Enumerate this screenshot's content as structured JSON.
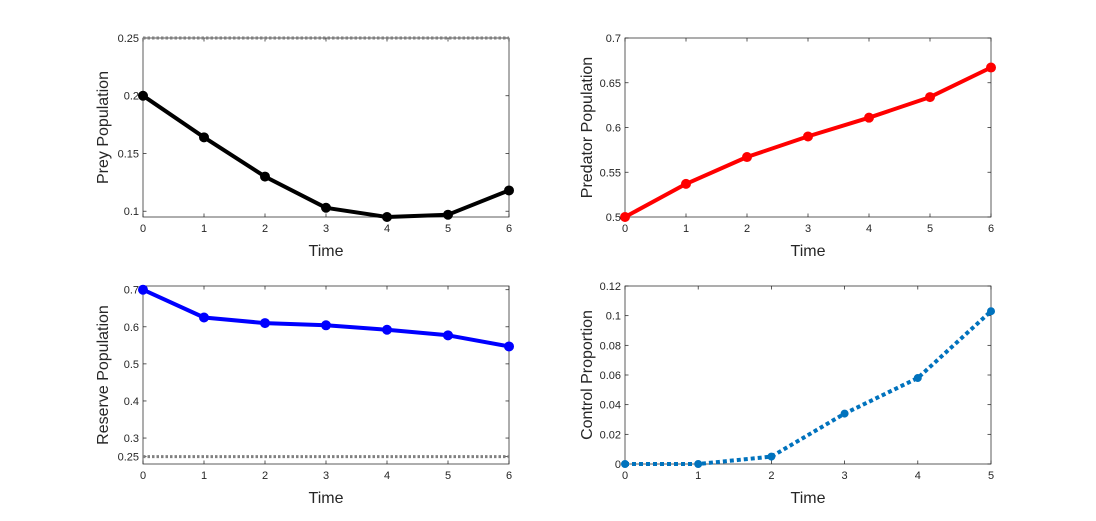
{
  "chart_data": [
    {
      "type": "line",
      "panel": "top-left",
      "xlabel": "Time",
      "ylabel": "Prey Population",
      "x": [
        0,
        1,
        2,
        3,
        4,
        5,
        6
      ],
      "xlim": [
        0,
        6
      ],
      "ylim": [
        0.095,
        0.25
      ],
      "xticks": [
        0,
        1,
        2,
        3,
        4,
        5,
        6
      ],
      "yticks": [
        0.1,
        0.15,
        0.2,
        0.25
      ],
      "ytick_labels": [
        "0.1",
        "0.15",
        "0.2",
        "0.25"
      ],
      "series": [
        {
          "name": "prey",
          "values": [
            0.2,
            0.164,
            0.13,
            0.103,
            0.095,
            0.097,
            0.118
          ],
          "color": "#000000",
          "style": "solid",
          "markers": true
        }
      ],
      "reference_lines": [
        {
          "y": 0.25,
          "color": "#808080",
          "style": "dotted"
        }
      ]
    },
    {
      "type": "line",
      "panel": "top-right",
      "xlabel": "Time",
      "ylabel": "Predator Population",
      "x": [
        0,
        1,
        2,
        3,
        4,
        5,
        6
      ],
      "xlim": [
        0,
        6
      ],
      "ylim": [
        0.5,
        0.7
      ],
      "xticks": [
        0,
        1,
        2,
        3,
        4,
        5,
        6
      ],
      "yticks": [
        0.5,
        0.55,
        0.6,
        0.65,
        0.7
      ],
      "ytick_labels": [
        "0.5",
        "0.55",
        "0.6",
        "0.65",
        "0.7"
      ],
      "series": [
        {
          "name": "predator",
          "values": [
            0.5,
            0.537,
            0.567,
            0.59,
            0.611,
            0.634,
            0.667
          ],
          "color": "#ff0000",
          "style": "solid",
          "markers": true
        }
      ],
      "reference_lines": []
    },
    {
      "type": "line",
      "panel": "bottom-left",
      "xlabel": "Time",
      "ylabel": "Reserve Population",
      "x": [
        0,
        1,
        2,
        3,
        4,
        5,
        6
      ],
      "xlim": [
        0,
        6
      ],
      "ylim": [
        0.23,
        0.71
      ],
      "xticks": [
        0,
        1,
        2,
        3,
        4,
        5,
        6
      ],
      "yticks": [
        0.25,
        0.3,
        0.4,
        0.5,
        0.6,
        0.7
      ],
      "ytick_labels": [
        "0.25",
        "0.3",
        "0.4",
        "0.5",
        "0.6",
        "0.7"
      ],
      "series": [
        {
          "name": "reserve",
          "values": [
            0.7,
            0.625,
            0.61,
            0.604,
            0.592,
            0.577,
            0.547
          ],
          "color": "#0000ff",
          "style": "solid",
          "markers": true
        }
      ],
      "reference_lines": [
        {
          "y": 0.25,
          "color": "#808080",
          "style": "dotted"
        }
      ]
    },
    {
      "type": "line",
      "panel": "bottom-right",
      "xlabel": "Time",
      "ylabel": "Control Proportion",
      "x": [
        0,
        1,
        2,
        3,
        4,
        5
      ],
      "xlim": [
        0,
        5
      ],
      "ylim": [
        0,
        0.12
      ],
      "xticks": [
        0,
        1,
        2,
        3,
        4,
        5
      ],
      "yticks": [
        0,
        0.02,
        0.04,
        0.06,
        0.08,
        0.1,
        0.12
      ],
      "ytick_labels": [
        "0",
        "0.02",
        "0.04",
        "0.06",
        "0.08",
        "0.1",
        "0.12"
      ],
      "series": [
        {
          "name": "control",
          "values": [
            0,
            0,
            0.005,
            0.034,
            0.058,
            0.103
          ],
          "color": "#0072bd",
          "style": "dotted",
          "markers": true
        }
      ],
      "reference_lines": []
    }
  ]
}
